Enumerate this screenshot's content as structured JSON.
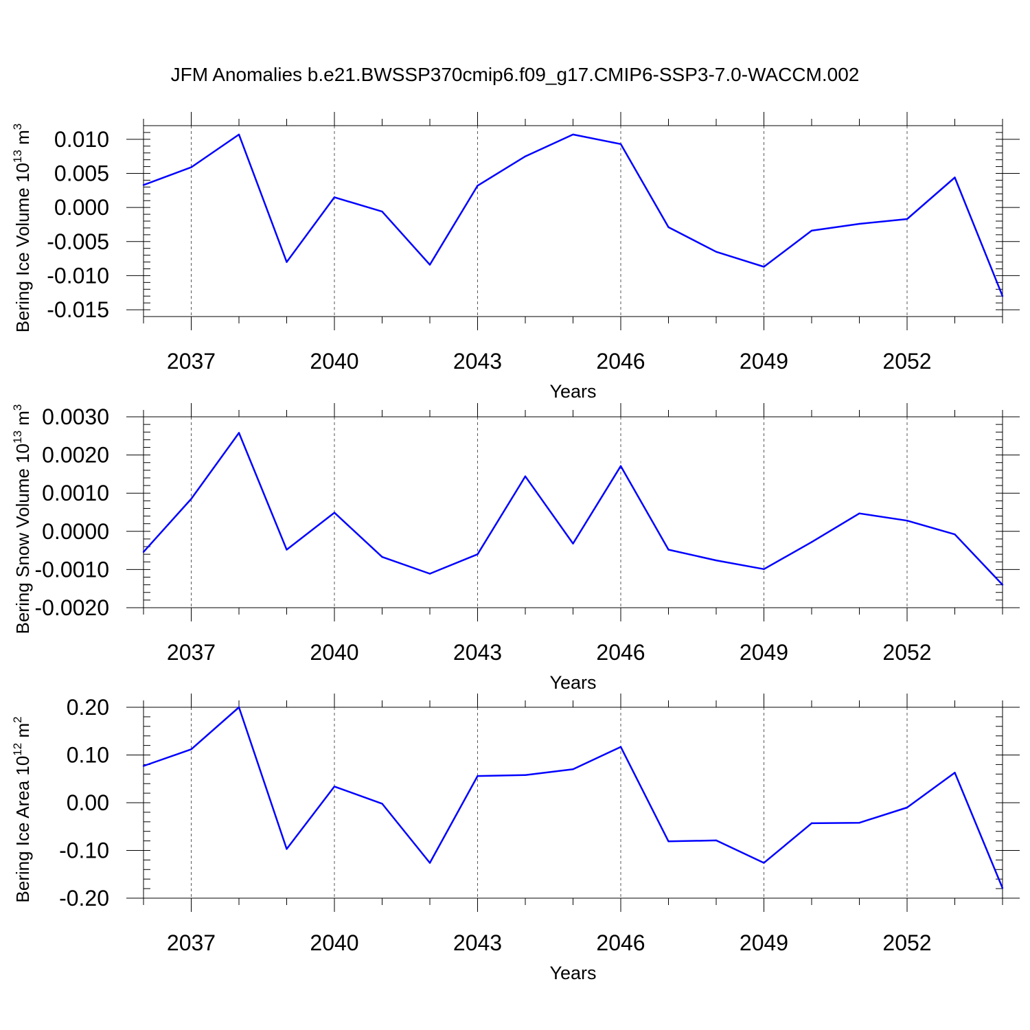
{
  "title": "JFM Anomalies b.e21.BWSSP370cmip6.f09_g17.CMIP6-SSP3-7.0-WACCM.002",
  "line_color": "#0000ff",
  "chart_data": [
    {
      "type": "line",
      "ylabel_main": "Bering Ice Volume 10",
      "ylabel_exp": "13",
      "ylabel_unit": " m",
      "ylabel_unit_exp": "3",
      "xlabel": "Years",
      "xlim": [
        2036,
        2054
      ],
      "ylim": [
        -0.016,
        0.012
      ],
      "xticks": [
        2037,
        2040,
        2043,
        2046,
        2049,
        2052
      ],
      "xtick_labels": [
        "2037",
        "2040",
        "2043",
        "2046",
        "2049",
        "2052"
      ],
      "yticks": [
        -0.015,
        -0.01,
        -0.005,
        0.0,
        0.005,
        0.01
      ],
      "ytick_labels": [
        "-0.015",
        "-0.010",
        "-0.005",
        "0.000",
        "0.005",
        "0.010"
      ],
      "yminor_step": 0.001,
      "x": [
        2036,
        2037,
        2038,
        2039,
        2040,
        2041,
        2042,
        2043,
        2044,
        2045,
        2046,
        2047,
        2048,
        2049,
        2050,
        2051,
        2052,
        2053,
        2054
      ],
      "values": [
        0.0033,
        0.0059,
        0.0107,
        -0.008,
        0.0015,
        -0.0006,
        -0.0084,
        0.0032,
        0.0075,
        0.0107,
        0.0093,
        -0.0029,
        -0.0065,
        -0.0087,
        -0.0034,
        -0.0024,
        -0.0017,
        0.0044,
        -0.013
      ]
    },
    {
      "type": "line",
      "ylabel_main": "Bering Snow Volume 10",
      "ylabel_exp": "13",
      "ylabel_unit": " m",
      "ylabel_unit_exp": "3",
      "xlabel": "Years",
      "xlim": [
        2036,
        2054
      ],
      "ylim": [
        -0.002,
        0.003
      ],
      "xticks": [
        2037,
        2040,
        2043,
        2046,
        2049,
        2052
      ],
      "xtick_labels": [
        "2037",
        "2040",
        "2043",
        "2046",
        "2049",
        "2052"
      ],
      "yticks": [
        -0.002,
        -0.001,
        0.0,
        0.001,
        0.002,
        0.003
      ],
      "ytick_labels": [
        "-0.0020",
        "-0.0010",
        "0.0000",
        "0.0010",
        "0.0020",
        "0.0030"
      ],
      "yminor_step": 0.0002,
      "x": [
        2036,
        2037,
        2038,
        2039,
        2040,
        2041,
        2042,
        2043,
        2044,
        2045,
        2046,
        2047,
        2048,
        2049,
        2050,
        2051,
        2052,
        2053,
        2054
      ],
      "values": [
        -0.00054,
        0.00085,
        0.00258,
        -0.00048,
        0.00049,
        -0.00067,
        -0.00111,
        -0.0006,
        0.00144,
        -0.00032,
        0.00171,
        -0.00048,
        -0.00076,
        -0.00099,
        -0.00028,
        0.00047,
        0.00028,
        -8e-05,
        -0.0014
      ]
    },
    {
      "type": "line",
      "ylabel_main": "Bering Ice Area 10",
      "ylabel_exp": "12",
      "ylabel_unit": " m",
      "ylabel_unit_exp": "2",
      "xlabel": "Years",
      "xlim": [
        2036,
        2054
      ],
      "ylim": [
        -0.2,
        0.2
      ],
      "xticks": [
        2037,
        2040,
        2043,
        2046,
        2049,
        2052
      ],
      "xtick_labels": [
        "2037",
        "2040",
        "2043",
        "2046",
        "2049",
        "2052"
      ],
      "yticks": [
        -0.2,
        -0.1,
        0.0,
        0.1,
        0.2
      ],
      "ytick_labels": [
        "-0.20",
        "-0.10",
        "0.00",
        "0.10",
        "0.20"
      ],
      "yminor_step": 0.02,
      "x": [
        2036,
        2037,
        2038,
        2039,
        2040,
        2041,
        2042,
        2043,
        2044,
        2045,
        2046,
        2047,
        2048,
        2049,
        2050,
        2051,
        2052,
        2053,
        2054
      ],
      "values": [
        0.077,
        0.112,
        0.2,
        -0.097,
        0.034,
        -0.002,
        -0.126,
        0.056,
        0.058,
        0.07,
        0.117,
        -0.081,
        -0.079,
        -0.126,
        -0.043,
        -0.042,
        -0.01,
        0.063,
        -0.179
      ]
    }
  ]
}
